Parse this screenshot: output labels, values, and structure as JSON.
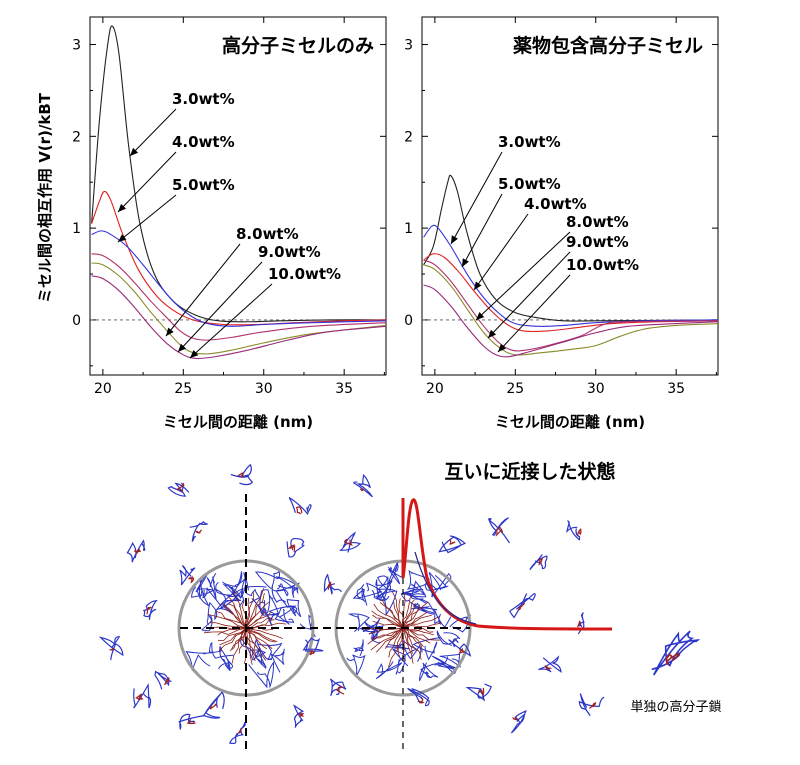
{
  "figure": {
    "y_axis_label": "ミセル間の相互作用 V(r)/kBT",
    "bottom_title": "互いに近接した状態",
    "single_chain_label": "単独の高分子鎖"
  },
  "chart_data": [
    {
      "type": "line",
      "title": "高分子ミセルのみ",
      "xlabel": "ミセル間の距離 (nm)",
      "ylabel": "ミセル間の相互作用 V(r)/kBT",
      "xlim": [
        19.2,
        37.6
      ],
      "ylim": [
        -0.6,
        3.3
      ],
      "xticks": [
        20,
        25,
        30,
        35
      ],
      "yticks": [
        0,
        1,
        2,
        3
      ],
      "reference_line": {
        "y": 0,
        "style": "dashed"
      },
      "series": [
        {
          "name": "3.0wt%",
          "color": "#222222",
          "points": [
            [
              19.3,
              1.05
            ],
            [
              19.8,
              2.2
            ],
            [
              20.3,
              3.0
            ],
            [
              20.6,
              3.2
            ],
            [
              21.0,
              2.9
            ],
            [
              21.6,
              1.9
            ],
            [
              22.3,
              1.05
            ],
            [
              23.2,
              0.5
            ],
            [
              24.4,
              0.2
            ],
            [
              25.8,
              0.05
            ],
            [
              27.2,
              -0.01
            ],
            [
              29.0,
              -0.02
            ],
            [
              31.0,
              -0.01
            ],
            [
              34.0,
              0.0
            ],
            [
              37.6,
              0.0
            ]
          ]
        },
        {
          "name": "4.0wt%",
          "color": "#e02020",
          "points": [
            [
              19.3,
              1.05
            ],
            [
              19.8,
              1.3
            ],
            [
              20.1,
              1.4
            ],
            [
              20.5,
              1.3
            ],
            [
              21.2,
              0.95
            ],
            [
              22.2,
              0.55
            ],
            [
              23.4,
              0.25
            ],
            [
              24.6,
              0.08
            ],
            [
              25.8,
              -0.01
            ],
            [
              27.5,
              -0.05
            ],
            [
              29.5,
              -0.05
            ],
            [
              32.0,
              -0.03
            ],
            [
              35.0,
              -0.01
            ],
            [
              37.6,
              0.0
            ]
          ]
        },
        {
          "name": "5.0wt%",
          "color": "#3333dd",
          "points": [
            [
              19.3,
              0.93
            ],
            [
              19.9,
              0.97
            ],
            [
              20.5,
              0.93
            ],
            [
              21.5,
              0.8
            ],
            [
              22.5,
              0.6
            ],
            [
              23.5,
              0.38
            ],
            [
              24.5,
              0.18
            ],
            [
              25.5,
              0.04
            ],
            [
              26.5,
              -0.04
            ],
            [
              28.0,
              -0.07
            ],
            [
              30.0,
              -0.05
            ],
            [
              33.0,
              -0.03
            ],
            [
              37.6,
              -0.01
            ]
          ]
        },
        {
          "name": "8.0wt%",
          "color": "#b0306a",
          "points": [
            [
              19.3,
              0.72
            ],
            [
              20.0,
              0.7
            ],
            [
              21.0,
              0.58
            ],
            [
              22.0,
              0.4
            ],
            [
              23.0,
              0.2
            ],
            [
              24.0,
              0.02
            ],
            [
              24.8,
              -0.12
            ],
            [
              25.6,
              -0.2
            ],
            [
              26.5,
              -0.22
            ],
            [
              28.0,
              -0.19
            ],
            [
              30.0,
              -0.13
            ],
            [
              33.0,
              -0.07
            ],
            [
              37.6,
              -0.03
            ]
          ]
        },
        {
          "name": "9.0wt%",
          "color": "#8a8a2a",
          "points": [
            [
              19.3,
              0.62
            ],
            [
              20.0,
              0.6
            ],
            [
              21.0,
              0.48
            ],
            [
              22.0,
              0.3
            ],
            [
              23.0,
              0.08
            ],
            [
              24.0,
              -0.12
            ],
            [
              24.8,
              -0.27
            ],
            [
              25.5,
              -0.35
            ],
            [
              26.5,
              -0.37
            ],
            [
              28.0,
              -0.33
            ],
            [
              30.0,
              -0.25
            ],
            [
              33.0,
              -0.15
            ],
            [
              37.6,
              -0.06
            ]
          ]
        },
        {
          "name": "10.0wt%",
          "color": "#992a7a",
          "points": [
            [
              19.3,
              0.48
            ],
            [
              20.0,
              0.45
            ],
            [
              21.0,
              0.32
            ],
            [
              22.0,
              0.13
            ],
            [
              23.0,
              -0.08
            ],
            [
              24.0,
              -0.26
            ],
            [
              25.0,
              -0.38
            ],
            [
              25.8,
              -0.42
            ],
            [
              27.0,
              -0.4
            ],
            [
              29.0,
              -0.33
            ],
            [
              31.5,
              -0.22
            ],
            [
              34.0,
              -0.13
            ],
            [
              37.6,
              -0.07
            ]
          ]
        }
      ]
    },
    {
      "type": "line",
      "title": "薬物包含高分子ミセル",
      "xlabel": "ミセル間の距離 (nm)",
      "ylabel": "",
      "xlim": [
        19.2,
        37.6
      ],
      "ylim": [
        -0.6,
        3.3
      ],
      "xticks": [
        20,
        25,
        30,
        35
      ],
      "yticks": [
        0,
        1,
        2,
        3
      ],
      "reference_line": {
        "y": 0,
        "style": "dashed"
      },
      "series": [
        {
          "name": "3.0wt%",
          "color": "#222222",
          "points": [
            [
              19.3,
              0.6
            ],
            [
              19.9,
              0.8
            ],
            [
              20.4,
              1.2
            ],
            [
              20.8,
              1.5
            ],
            [
              21.0,
              1.57
            ],
            [
              21.4,
              1.4
            ],
            [
              22.0,
              0.95
            ],
            [
              22.8,
              0.5
            ],
            [
              23.8,
              0.22
            ],
            [
              25.0,
              0.08
            ],
            [
              26.5,
              0.02
            ],
            [
              28.0,
              -0.01
            ],
            [
              30.0,
              -0.01
            ],
            [
              37.6,
              0.0
            ]
          ]
        },
        {
          "name": "5.0wt%",
          "color": "#3333dd",
          "points": [
            [
              19.3,
              0.9
            ],
            [
              19.8,
              1.02
            ],
            [
              20.2,
              1.0
            ],
            [
              21.0,
              0.8
            ],
            [
              22.0,
              0.5
            ],
            [
              23.0,
              0.25
            ],
            [
              24.0,
              0.07
            ],
            [
              25.0,
              -0.04
            ],
            [
              26.5,
              -0.07
            ],
            [
              28.0,
              -0.06
            ],
            [
              30.0,
              -0.03
            ],
            [
              33.0,
              -0.01
            ],
            [
              37.6,
              0.0
            ]
          ]
        },
        {
          "name": "4.0wt%",
          "color": "#e02020",
          "points": [
            [
              19.3,
              0.65
            ],
            [
              19.9,
              0.72
            ],
            [
              20.6,
              0.68
            ],
            [
              21.5,
              0.52
            ],
            [
              22.5,
              0.3
            ],
            [
              23.5,
              0.1
            ],
            [
              24.5,
              -0.05
            ],
            [
              25.5,
              -0.12
            ],
            [
              27.0,
              -0.12
            ],
            [
              29.0,
              -0.08
            ],
            [
              31.0,
              -0.04
            ],
            [
              34.0,
              -0.02
            ],
            [
              37.6,
              -0.01
            ]
          ]
        },
        {
          "name": "8.0wt%",
          "color": "#b0306a",
          "points": [
            [
              19.3,
              0.65
            ],
            [
              20.0,
              0.6
            ],
            [
              21.0,
              0.42
            ],
            [
              22.0,
              0.18
            ],
            [
              23.0,
              -0.06
            ],
            [
              24.0,
              -0.25
            ],
            [
              24.8,
              -0.33
            ],
            [
              25.6,
              -0.33
            ],
            [
              27.0,
              -0.28
            ],
            [
              29.0,
              -0.18
            ],
            [
              30.5,
              -0.05
            ],
            [
              32.0,
              -0.02
            ],
            [
              37.6,
              -0.01
            ]
          ]
        },
        {
          "name": "9.0wt%",
          "color": "#8a8a2a",
          "points": [
            [
              19.3,
              0.6
            ],
            [
              20.0,
              0.55
            ],
            [
              21.0,
              0.37
            ],
            [
              22.0,
              0.12
            ],
            [
              23.0,
              -0.13
            ],
            [
              24.0,
              -0.3
            ],
            [
              25.0,
              -0.38
            ],
            [
              26.5,
              -0.36
            ],
            [
              28.5,
              -0.32
            ],
            [
              30.0,
              -0.28
            ],
            [
              31.5,
              -0.18
            ],
            [
              33.0,
              -0.1
            ],
            [
              35.0,
              -0.06
            ],
            [
              37.6,
              -0.04
            ]
          ]
        },
        {
          "name": "10.0wt%",
          "color": "#992a7a",
          "points": [
            [
              19.3,
              0.38
            ],
            [
              20.0,
              0.33
            ],
            [
              21.0,
              0.15
            ],
            [
              22.0,
              -0.08
            ],
            [
              23.0,
              -0.28
            ],
            [
              23.8,
              -0.38
            ],
            [
              24.6,
              -0.4
            ],
            [
              26.0,
              -0.34
            ],
            [
              28.0,
              -0.24
            ],
            [
              30.0,
              -0.14
            ],
            [
              32.0,
              -0.07
            ],
            [
              35.0,
              -0.04
            ],
            [
              37.6,
              -0.02
            ]
          ]
        }
      ]
    }
  ]
}
